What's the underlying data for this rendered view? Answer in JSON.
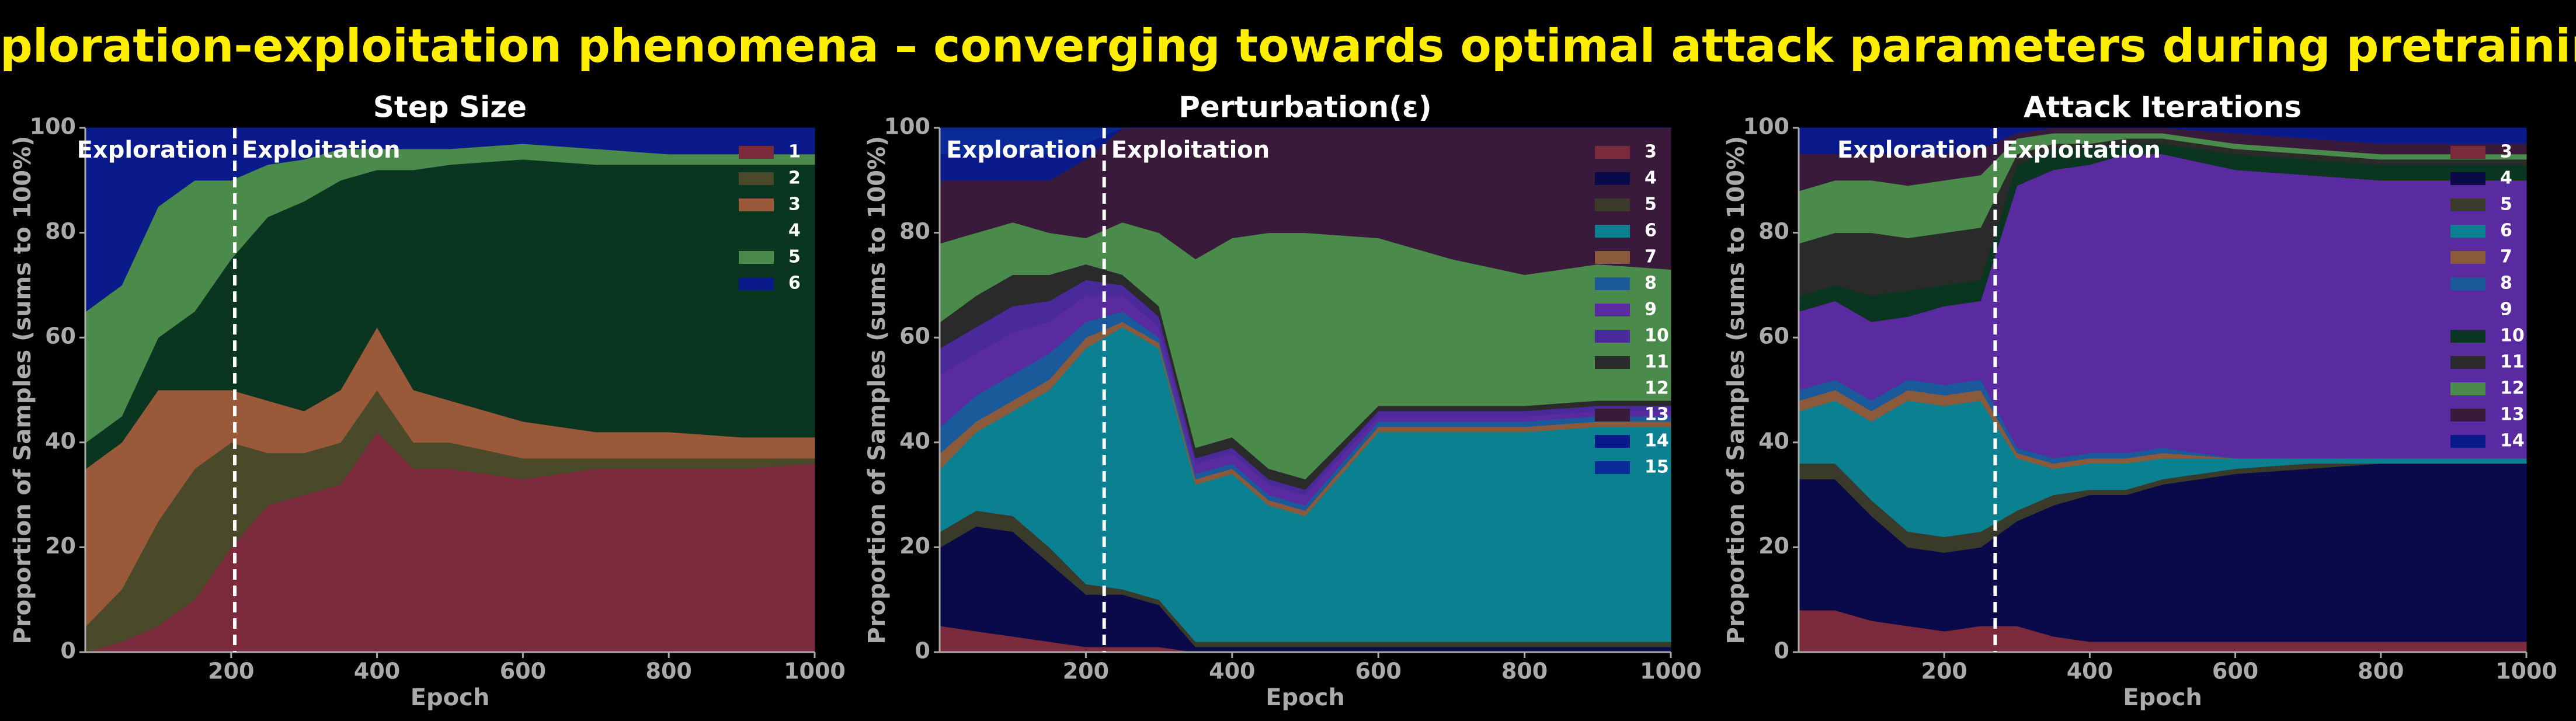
{
  "title": "Exploration-exploitation phenomena – converging towards optimal attack parameters during pretraining",
  "chart_data": [
    {
      "type": "stacked_area",
      "title": "Step Size",
      "x_label": "Epoch",
      "y_label": "Proportion of Samples (sums to 100%)",
      "xlim": [
        0,
        1000
      ],
      "xticks": [
        200,
        400,
        600,
        800,
        1000
      ],
      "ylim": [
        0,
        100
      ],
      "yticks": [
        0,
        20,
        40,
        60,
        80,
        100
      ],
      "legend": "upper right",
      "phase_boundary": 205,
      "annotations": [
        "Exploration",
        "Exploitation"
      ],
      "x": [
        1,
        50,
        100,
        150,
        200,
        250,
        300,
        350,
        400,
        450,
        500,
        600,
        700,
        800,
        900,
        1000
      ],
      "series": [
        {
          "name": "1",
          "color": "#7a2a3a",
          "values": [
            0,
            2,
            5,
            10,
            20,
            28,
            30,
            32,
            42,
            35,
            35,
            33,
            35,
            35,
            35,
            36
          ]
        },
        {
          "name": "2",
          "color": "#4a4a2a",
          "values": [
            5,
            10,
            20,
            25,
            20,
            10,
            8,
            8,
            8,
            5,
            5,
            4,
            2,
            2,
            2,
            1
          ]
        },
        {
          "name": "3",
          "color": "#9a5a3a",
          "values": [
            30,
            28,
            25,
            15,
            10,
            10,
            8,
            10,
            12,
            10,
            8,
            7,
            5,
            5,
            4,
            4
          ]
        },
        {
          "name": "4",
          "color": "#0a3520",
          "values": [
            5,
            5,
            10,
            15,
            25,
            35,
            40,
            40,
            30,
            42,
            45,
            50,
            51,
            51,
            52,
            52
          ]
        },
        {
          "name": "5",
          "color": "#4a8a4a",
          "values": [
            25,
            25,
            25,
            25,
            15,
            10,
            8,
            6,
            4,
            4,
            3,
            3,
            3,
            2,
            2,
            2
          ]
        },
        {
          "name": "6",
          "color": "#0a1a8a",
          "values": [
            35,
            30,
            15,
            10,
            10,
            7,
            6,
            4,
            4,
            4,
            4,
            3,
            4,
            5,
            5,
            5
          ]
        }
      ]
    },
    {
      "type": "stacked_area",
      "title": "Perturbation(ε)",
      "x_label": "Epoch",
      "y_label": "Proportion of Samples (sums to 100%)",
      "xlim": [
        0,
        1000
      ],
      "xticks": [
        200,
        400,
        600,
        800,
        1000
      ],
      "ylim": [
        0,
        100
      ],
      "yticks": [
        0,
        20,
        40,
        60,
        80,
        100
      ],
      "legend": "upper right",
      "phase_boundary": 225,
      "annotations": [
        "Exploration",
        "Exploitation"
      ],
      "x": [
        1,
        50,
        100,
        150,
        200,
        250,
        300,
        350,
        400,
        450,
        500,
        600,
        700,
        800,
        900,
        1000
      ],
      "series": [
        {
          "name": "3",
          "color": "#7a2a3a",
          "values": [
            5,
            4,
            3,
            2,
            1,
            1,
            1,
            0,
            0,
            0,
            0,
            0,
            0,
            0,
            0,
            0
          ]
        },
        {
          "name": "4",
          "color": "#0a0a4a",
          "values": [
            15,
            20,
            20,
            15,
            10,
            10,
            8,
            1,
            1,
            1,
            1,
            1,
            1,
            1,
            1,
            1
          ]
        },
        {
          "name": "5",
          "color": "#3a3a2a",
          "values": [
            3,
            3,
            3,
            3,
            2,
            1,
            1,
            1,
            1,
            1,
            1,
            1,
            1,
            1,
            1,
            1
          ]
        },
        {
          "name": "6",
          "color": "#0a8090",
          "values": [
            12,
            15,
            20,
            30,
            45,
            50,
            48,
            30,
            32,
            26,
            24,
            40,
            40,
            40,
            41,
            41
          ]
        },
        {
          "name": "7",
          "color": "#8a5a3a",
          "values": [
            3,
            2,
            2,
            2,
            2,
            1,
            1,
            1,
            1,
            1,
            1,
            1,
            1,
            1,
            1,
            1
          ]
        },
        {
          "name": "8",
          "color": "#1a5a9a",
          "values": [
            5,
            5,
            5,
            5,
            3,
            2,
            1,
            1,
            1,
            1,
            1,
            1,
            1,
            1,
            1,
            1
          ]
        },
        {
          "name": "9",
          "color": "#5a2aa0",
          "values": [
            10,
            8,
            8,
            6,
            5,
            3,
            2,
            2,
            2,
            2,
            2,
            1,
            1,
            1,
            1,
            1
          ]
        },
        {
          "name": "10",
          "color": "#4a2a9a",
          "values": [
            5,
            5,
            5,
            4,
            3,
            2,
            2,
            1,
            1,
            1,
            1,
            1,
            1,
            1,
            1,
            1
          ]
        },
        {
          "name": "11",
          "color": "#2a2a2a",
          "values": [
            5,
            6,
            6,
            5,
            3,
            2,
            2,
            2,
            2,
            2,
            2,
            1,
            1,
            1,
            1,
            1
          ]
        },
        {
          "name": "12",
          "color": "#4a8a4a",
          "values": [
            15,
            12,
            10,
            8,
            5,
            10,
            14,
            36,
            38,
            45,
            47,
            32,
            28,
            25,
            26,
            25
          ]
        },
        {
          "name": "13",
          "color": "#3a1a3a",
          "values": [
            12,
            10,
            8,
            10,
            15,
            18,
            20,
            25,
            21,
            20,
            20,
            21,
            25,
            28,
            26,
            27
          ]
        },
        {
          "name": "14",
          "color": "#0a1a8a",
          "values": [
            5,
            5,
            5,
            5,
            3,
            0,
            0,
            0,
            0,
            0,
            0,
            0,
            0,
            0,
            0,
            0
          ]
        },
        {
          "name": "15",
          "color": "#0a2a9a",
          "values": [
            5,
            5,
            5,
            5,
            3,
            0,
            0,
            0,
            0,
            0,
            0,
            0,
            0,
            0,
            0,
            0
          ]
        }
      ]
    },
    {
      "type": "stacked_area",
      "title": "Attack Iterations",
      "x_label": "Epoch",
      "y_label": "Proportion of Samples (sums to 100%)",
      "xlim": [
        0,
        1000
      ],
      "xticks": [
        200,
        400,
        600,
        800,
        1000
      ],
      "ylim": [
        0,
        100
      ],
      "yticks": [
        0,
        20,
        40,
        60,
        80,
        100
      ],
      "legend": "upper right",
      "phase_boundary": 270,
      "annotations": [
        "Exploration",
        "Exploitation"
      ],
      "x": [
        1,
        50,
        100,
        150,
        200,
        250,
        300,
        350,
        400,
        450,
        500,
        600,
        700,
        800,
        900,
        1000
      ],
      "series": [
        {
          "name": "3",
          "color": "#7a2a3a",
          "values": [
            8,
            8,
            6,
            5,
            4,
            5,
            5,
            3,
            2,
            2,
            2,
            2,
            2,
            2,
            2,
            2
          ]
        },
        {
          "name": "4",
          "color": "#0a0a4a",
          "values": [
            25,
            25,
            20,
            15,
            15,
            15,
            20,
            25,
            28,
            28,
            30,
            32,
            33,
            34,
            34,
            34
          ]
        },
        {
          "name": "5",
          "color": "#3a3a2a",
          "values": [
            3,
            3,
            3,
            3,
            3,
            3,
            2,
            2,
            1,
            1,
            1,
            1,
            1,
            0,
            0,
            0
          ]
        },
        {
          "name": "6",
          "color": "#0a8090",
          "values": [
            10,
            12,
            15,
            25,
            25,
            25,
            10,
            5,
            5,
            5,
            4,
            2,
            1,
            1,
            1,
            1
          ]
        },
        {
          "name": "7",
          "color": "#8a5a3a",
          "values": [
            2,
            2,
            2,
            2,
            2,
            2,
            1,
            1,
            1,
            1,
            1,
            0,
            0,
            0,
            0,
            0
          ]
        },
        {
          "name": "8",
          "color": "#1a5a9a",
          "values": [
            2,
            2,
            2,
            2,
            2,
            2,
            1,
            1,
            1,
            1,
            1,
            0,
            0,
            0,
            0,
            0
          ]
        },
        {
          "name": "9",
          "color": "#5a2aa0",
          "values": [
            15,
            15,
            15,
            12,
            15,
            15,
            50,
            55,
            55,
            57,
            56,
            55,
            54,
            53,
            53,
            53
          ]
        },
        {
          "name": "10",
          "color": "#0a3520",
          "values": [
            3,
            3,
            5,
            5,
            4,
            4,
            4,
            4,
            3,
            2,
            2,
            3,
            3,
            3,
            3,
            3
          ]
        },
        {
          "name": "11",
          "color": "#2a2a2a",
          "values": [
            10,
            10,
            12,
            10,
            10,
            10,
            2,
            1,
            1,
            1,
            1,
            1,
            1,
            1,
            1,
            1
          ]
        },
        {
          "name": "12",
          "color": "#4a8a4a",
          "values": [
            10,
            10,
            10,
            10,
            10,
            10,
            3,
            2,
            2,
            1,
            1,
            1,
            1,
            1,
            1,
            1
          ]
        },
        {
          "name": "13",
          "color": "#3a1a3a",
          "values": [
            7,
            5,
            5,
            6,
            5,
            5,
            1,
            1,
            1,
            1,
            1,
            2,
            2,
            2,
            2,
            2
          ]
        },
        {
          "name": "14",
          "color": "#0a1a8a",
          "values": [
            5,
            5,
            5,
            5,
            5,
            4,
            1,
            0,
            0,
            0,
            0,
            1,
            2,
            3,
            3,
            3
          ]
        }
      ]
    }
  ]
}
